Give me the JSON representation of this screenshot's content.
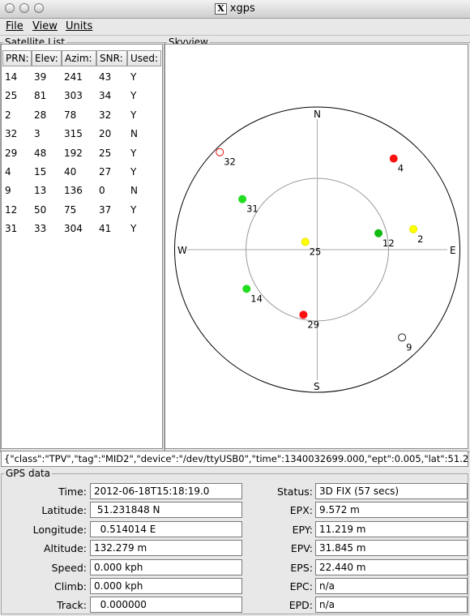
{
  "window": {
    "title": "xgps",
    "x_glyph": "X"
  },
  "menu": {
    "file": "File",
    "view": "View",
    "units": "Units"
  },
  "satellite_list": {
    "title": "Satellite List",
    "headers": [
      "PRN:",
      "Elev:",
      "Azim:",
      "SNR:",
      "Used:"
    ],
    "rows": [
      [
        "14",
        "39",
        "241",
        "43",
        "Y"
      ],
      [
        "25",
        "81",
        "303",
        "34",
        "Y"
      ],
      [
        "2",
        "28",
        "78",
        "32",
        "Y"
      ],
      [
        "32",
        "3",
        "315",
        "20",
        "N"
      ],
      [
        "29",
        "48",
        "192",
        "25",
        "Y"
      ],
      [
        "4",
        "15",
        "40",
        "27",
        "Y"
      ],
      [
        "9",
        "13",
        "136",
        "0",
        "N"
      ],
      [
        "12",
        "50",
        "75",
        "37",
        "Y"
      ],
      [
        "31",
        "33",
        "304",
        "41",
        "Y"
      ]
    ]
  },
  "skyview": {
    "title": "Skyview",
    "compass": {
      "n": "N",
      "s": "S",
      "e": "E",
      "w": "W"
    },
    "satellites": [
      {
        "prn": "32",
        "color": "#ffffff",
        "stroke": "#e01010",
        "az": 315,
        "el": 3
      },
      {
        "prn": "4",
        "color": "#ff1010",
        "stroke": "#ff1010",
        "az": 40,
        "el": 15
      },
      {
        "prn": "31",
        "color": "#22dd22",
        "stroke": "#22dd22",
        "az": 304,
        "el": 33
      },
      {
        "prn": "2",
        "color": "#ffff00",
        "stroke": "#e6e600",
        "az": 78,
        "el": 28
      },
      {
        "prn": "12",
        "color": "#11bb11",
        "stroke": "#11bb11",
        "az": 75,
        "el": 50
      },
      {
        "prn": "25",
        "color": "#ffff00",
        "stroke": "#e6e600",
        "az": 303,
        "el": 81
      },
      {
        "prn": "14",
        "color": "#22dd22",
        "stroke": "#22dd22",
        "az": 241,
        "el": 39
      },
      {
        "prn": "29",
        "color": "#ff1010",
        "stroke": "#ff1010",
        "az": 192,
        "el": 48
      },
      {
        "prn": "9",
        "color": "#ffffff",
        "stroke": "#222222",
        "az": 136,
        "el": 13
      }
    ]
  },
  "raw_line": "{\"class\":\"TPV\",\"tag\":\"MID2\",\"device\":\"/dev/ttyUSB0\",\"time\":1340032699.000,\"ept\":0.005,\"lat\":51.2",
  "gps_data": {
    "title": "GPS data",
    "left": [
      {
        "label": "Time:",
        "value": "2012-06-18T15:18:19.0"
      },
      {
        "label": "Latitude:",
        "value": " 51.231848 N"
      },
      {
        "label": "Longitude:",
        "value": "  0.514014 E"
      },
      {
        "label": "Altitude:",
        "value": "132.279 m"
      },
      {
        "label": "Speed:",
        "value": "0.000 kph"
      },
      {
        "label": "Climb:",
        "value": "0.000 kph"
      },
      {
        "label": "Track:",
        "value": "  0.000000"
      }
    ],
    "right": [
      {
        "label": "Status:",
        "value": "3D FIX (57 secs)"
      },
      {
        "label": "EPX:",
        "value": "9.572 m"
      },
      {
        "label": "EPY:",
        "value": "11.219 m"
      },
      {
        "label": "EPV:",
        "value": "31.845 m"
      },
      {
        "label": "EPS:",
        "value": "22.440 m"
      },
      {
        "label": "EPC:",
        "value": "n/a"
      },
      {
        "label": "EPD:",
        "value": "n/a"
      }
    ]
  }
}
